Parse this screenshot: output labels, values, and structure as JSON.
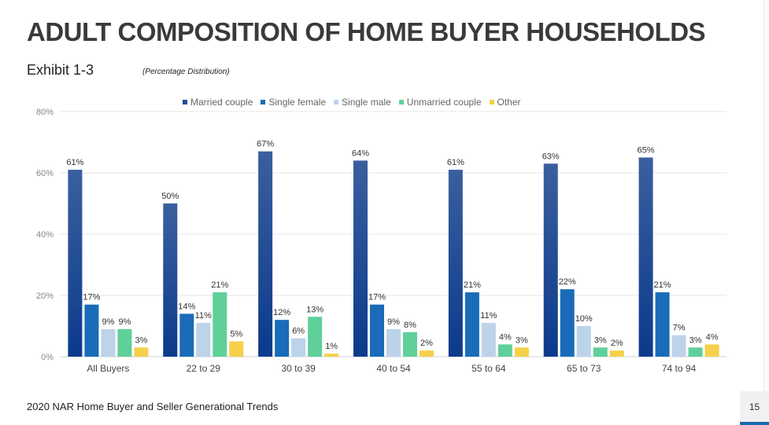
{
  "title": "ADULT COMPOSITION OF HOME BUYER HOUSEHOLDS",
  "exhibit": "Exhibit 1-3",
  "subtitle": "(Percentage Distribution)",
  "footer": "2020 NAR Home Buyer and Seller Generational Trends",
  "page_number": "15",
  "chart_data": {
    "type": "bar",
    "categories": [
      "All Buyers",
      "22 to 29",
      "30 to 39",
      "40 to 54",
      "55 to 64",
      "65 to 73",
      "74 to 94"
    ],
    "series": [
      {
        "name": "Married couple",
        "color": "#1f4e96",
        "values": [
          61,
          50,
          67,
          64,
          61,
          63,
          65
        ]
      },
      {
        "name": "Single female",
        "color": "#1a6bb8",
        "values": [
          17,
          14,
          12,
          17,
          21,
          22,
          21
        ]
      },
      {
        "name": "Single male",
        "color": "#bcd3ea",
        "values": [
          9,
          11,
          6,
          9,
          11,
          10,
          7
        ]
      },
      {
        "name": "Unmarried couple",
        "color": "#5fd09a",
        "values": [
          9,
          21,
          13,
          8,
          4,
          3,
          3
        ]
      },
      {
        "name": "Other",
        "color": "#f5d04a",
        "values": [
          3,
          5,
          1,
          2,
          3,
          2,
          4
        ]
      }
    ],
    "data_labels": [
      [
        "61%",
        "50%",
        "67%",
        "64%",
        "61%",
        "63%",
        "65%"
      ],
      [
        "17%",
        "14%",
        "12%",
        "17%",
        "21%",
        "22%",
        "21%"
      ],
      [
        "9%",
        "11%",
        "6%",
        "9%",
        "11%",
        "10%",
        "7%"
      ],
      [
        "9%",
        "21%",
        "13%",
        "8%",
        "4%",
        "3%",
        "3%"
      ],
      [
        "3%",
        "5%",
        "1%",
        "2%",
        "3%",
        "2%",
        "4%"
      ]
    ],
    "ylim": [
      0,
      80
    ],
    "yticks": [
      "0%",
      "20%",
      "40%",
      "60%",
      "80%"
    ],
    "grid": true,
    "legend_position": "top"
  }
}
